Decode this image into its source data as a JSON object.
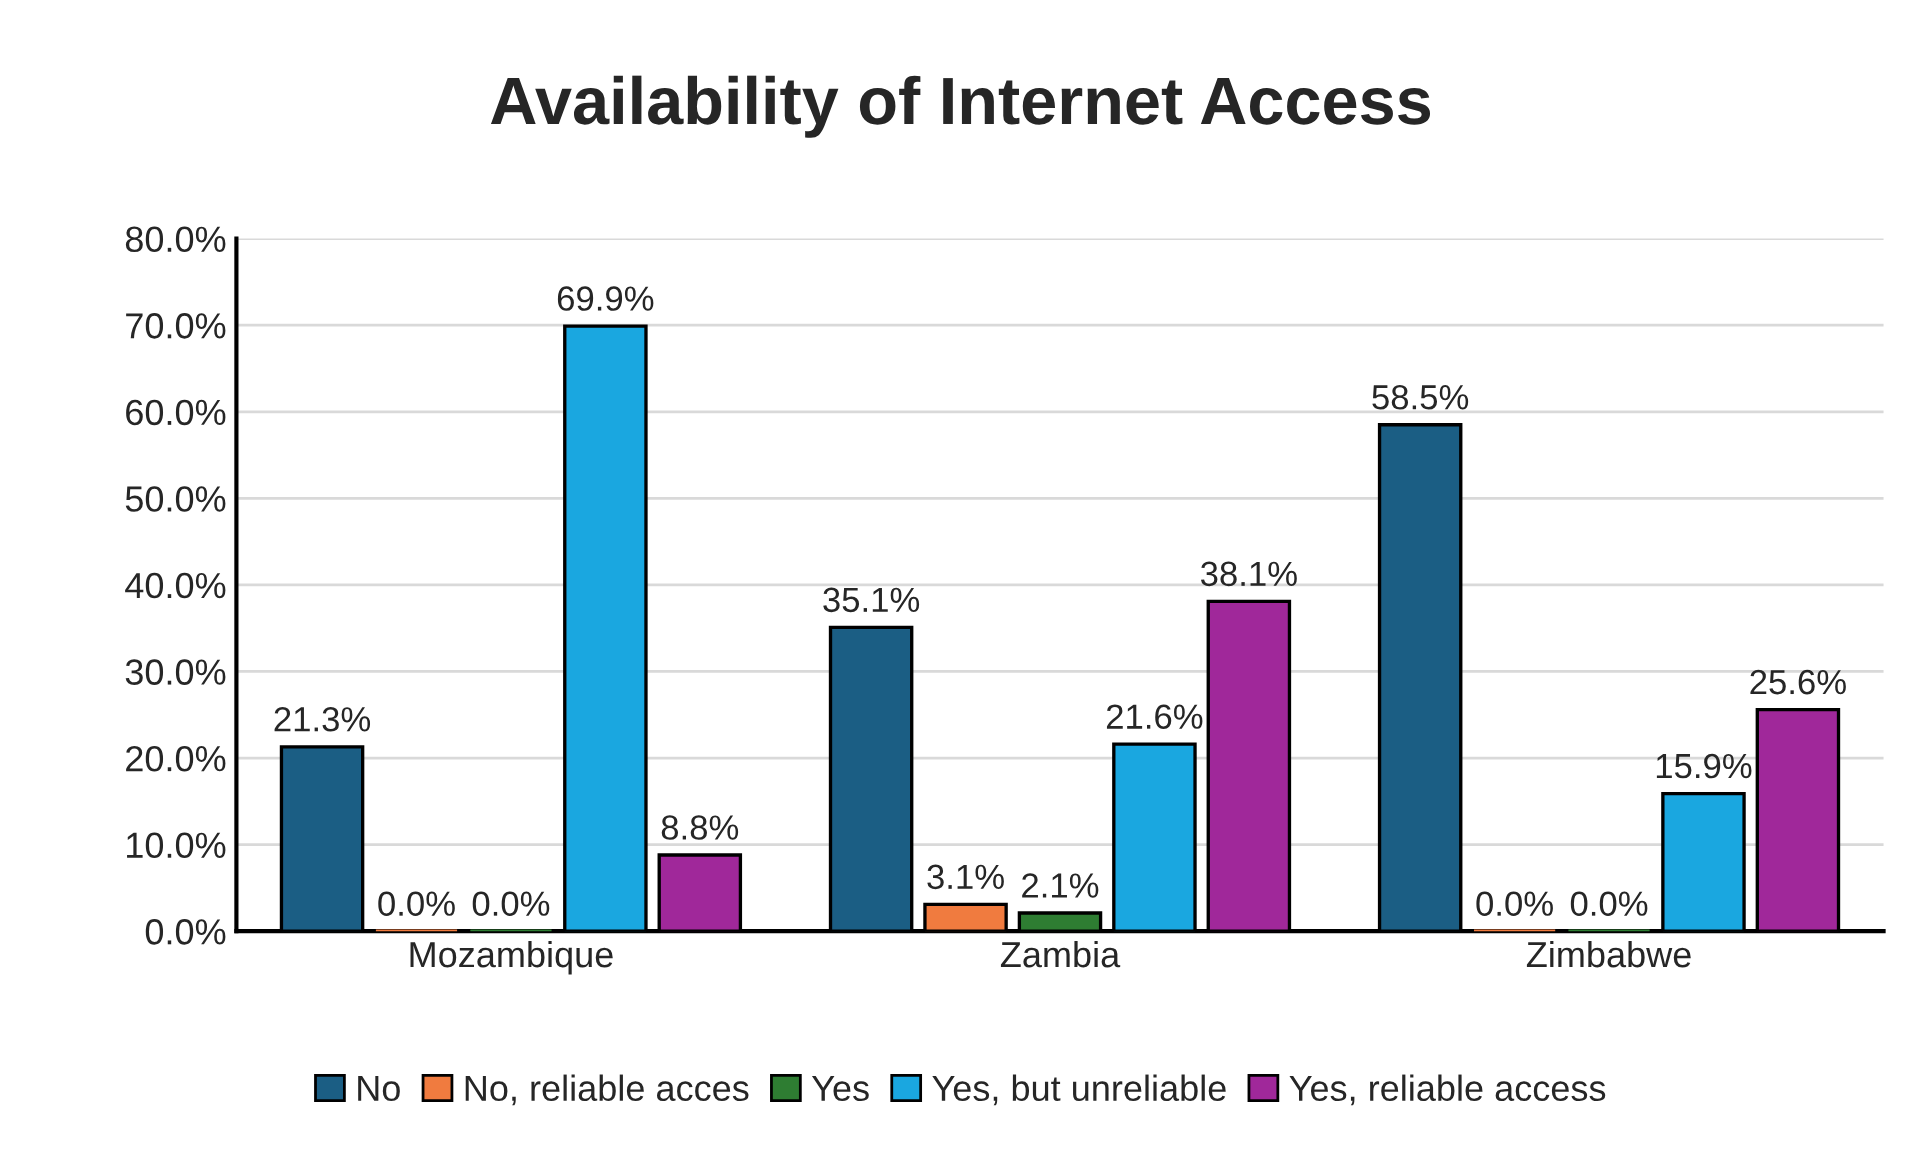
{
  "chart_data": {
    "type": "bar",
    "title": "Availability of Internet Access",
    "categories": [
      "Mozambique",
      "Zambia",
      "Zimbabwe"
    ],
    "series": [
      {
        "name": "No",
        "color": "#1b5e84",
        "values": [
          21.3,
          35.1,
          58.5
        ],
        "value_labels": [
          "21.3%",
          "35.1%",
          "58.5%"
        ]
      },
      {
        "name": "No, reliable acces",
        "color": "#f07b3f",
        "values": [
          0.0,
          3.1,
          0.0
        ],
        "value_labels": [
          "0.0%",
          "3.1%",
          "0.0%"
        ]
      },
      {
        "name": "Yes",
        "color": "#2e7d32",
        "values": [
          0.0,
          2.1,
          0.0
        ],
        "value_labels": [
          "0.0%",
          "2.1%",
          "0.0%"
        ]
      },
      {
        "name": "Yes, but unreliable",
        "color": "#1aa7e0",
        "values": [
          69.9,
          21.6,
          15.9
        ],
        "value_labels": [
          "69.9%",
          "21.6%",
          "15.9%"
        ]
      },
      {
        "name": "Yes, reliable access",
        "color": "#a0289a",
        "values": [
          8.8,
          38.1,
          25.6
        ],
        "value_labels": [
          "8.8%",
          "38.1%",
          "25.6%"
        ]
      }
    ],
    "ylim": [
      0,
      80
    ],
    "yticks": [
      {
        "value": 0,
        "label": "0.0%"
      },
      {
        "value": 10,
        "label": "10.0%"
      },
      {
        "value": 20,
        "label": "20.0%"
      },
      {
        "value": 30,
        "label": "30.0%"
      },
      {
        "value": 40,
        "label": "40.0%"
      },
      {
        "value": 50,
        "label": "50.0%"
      },
      {
        "value": 60,
        "label": "60.0%"
      },
      {
        "value": 70,
        "label": "70.0%"
      },
      {
        "value": 80,
        "label": "80.0%"
      }
    ],
    "grid": "y",
    "legend": "bottom"
  }
}
